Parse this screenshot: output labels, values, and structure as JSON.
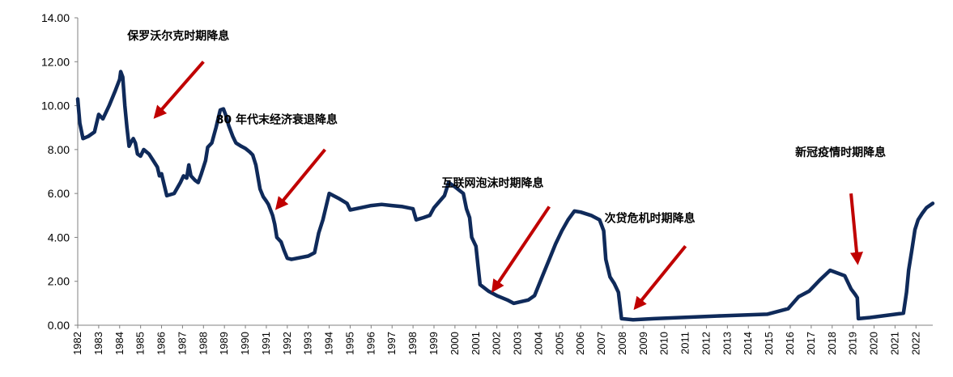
{
  "chart_data": {
    "type": "line",
    "title": "",
    "xlabel": "",
    "ylabel": "",
    "xlim": [
      1982,
      2022.8
    ],
    "ylim": [
      0,
      14
    ],
    "grid": false,
    "colors": {
      "line": "#0f2a5a",
      "arrow": "#c00000"
    },
    "y_ticks": [
      "0.00",
      "2.00",
      "4.00",
      "6.00",
      "8.00",
      "10.00",
      "12.00",
      "14.00"
    ],
    "x_ticks": [
      "1982",
      "1983",
      "1984",
      "1985",
      "1986",
      "1987",
      "1988",
      "1989",
      "1990",
      "1991",
      "1992",
      "1993",
      "1994",
      "1995",
      "1996",
      "1997",
      "1998",
      "1999",
      "2000",
      "2001",
      "2002",
      "2003",
      "2004",
      "2005",
      "2006",
      "2007",
      "2008",
      "2009",
      "2010",
      "2011",
      "2012",
      "2013",
      "2014",
      "2015",
      "2016",
      "2017",
      "2018",
      "2019",
      "2020",
      "2021",
      "2022"
    ],
    "series": [
      {
        "points": [
          [
            1982.0,
            10.3
          ],
          [
            1982.1,
            9.2
          ],
          [
            1982.25,
            8.5
          ],
          [
            1982.5,
            8.6
          ],
          [
            1982.8,
            8.8
          ],
          [
            1983.0,
            9.6
          ],
          [
            1983.2,
            9.4
          ],
          [
            1983.5,
            10.0
          ],
          [
            1983.8,
            10.7
          ],
          [
            1984.0,
            11.2
          ],
          [
            1984.05,
            11.55
          ],
          [
            1984.15,
            11.3
          ],
          [
            1984.25,
            10.0
          ],
          [
            1984.35,
            9.0
          ],
          [
            1984.45,
            8.15
          ],
          [
            1984.55,
            8.35
          ],
          [
            1984.65,
            8.5
          ],
          [
            1984.75,
            8.3
          ],
          [
            1984.85,
            7.8
          ],
          [
            1985.0,
            7.7
          ],
          [
            1985.15,
            8.0
          ],
          [
            1985.4,
            7.8
          ],
          [
            1985.6,
            7.5
          ],
          [
            1985.8,
            7.2
          ],
          [
            1985.9,
            6.8
          ],
          [
            1986.0,
            6.9
          ],
          [
            1986.1,
            6.5
          ],
          [
            1986.25,
            5.9
          ],
          [
            1986.6,
            6.0
          ],
          [
            1986.9,
            6.5
          ],
          [
            1987.05,
            6.8
          ],
          [
            1987.2,
            6.7
          ],
          [
            1987.3,
            7.3
          ],
          [
            1987.4,
            6.8
          ],
          [
            1987.6,
            6.6
          ],
          [
            1987.75,
            6.5
          ],
          [
            1987.9,
            6.9
          ],
          [
            1988.1,
            7.5
          ],
          [
            1988.2,
            8.1
          ],
          [
            1988.4,
            8.3
          ],
          [
            1988.6,
            9.0
          ],
          [
            1988.8,
            9.8
          ],
          [
            1988.95,
            9.85
          ],
          [
            1989.05,
            9.6
          ],
          [
            1989.2,
            9.1
          ],
          [
            1989.4,
            8.6
          ],
          [
            1989.55,
            8.3
          ],
          [
            1989.8,
            8.15
          ],
          [
            1990.0,
            8.05
          ],
          [
            1990.2,
            7.9
          ],
          [
            1990.35,
            7.75
          ],
          [
            1990.5,
            7.3
          ],
          [
            1990.7,
            6.2
          ],
          [
            1990.85,
            5.85
          ],
          [
            1991.0,
            5.65
          ],
          [
            1991.1,
            5.5
          ],
          [
            1991.3,
            5.0
          ],
          [
            1991.4,
            4.6
          ],
          [
            1991.5,
            4.0
          ],
          [
            1991.7,
            3.8
          ],
          [
            1991.85,
            3.4
          ],
          [
            1992.0,
            3.05
          ],
          [
            1992.2,
            3.0
          ],
          [
            1993.0,
            3.15
          ],
          [
            1993.3,
            3.3
          ],
          [
            1993.5,
            4.2
          ],
          [
            1993.7,
            4.8
          ],
          [
            1994.0,
            6.0
          ],
          [
            1994.5,
            5.75
          ],
          [
            1994.85,
            5.55
          ],
          [
            1995.0,
            5.25
          ],
          [
            1995.5,
            5.35
          ],
          [
            1996.0,
            5.45
          ],
          [
            1996.5,
            5.5
          ],
          [
            1997.0,
            5.45
          ],
          [
            1997.5,
            5.4
          ],
          [
            1998.0,
            5.3
          ],
          [
            1998.15,
            4.8
          ],
          [
            1998.5,
            4.9
          ],
          [
            1998.8,
            5.0
          ],
          [
            1999.0,
            5.35
          ],
          [
            1999.5,
            5.9
          ],
          [
            1999.7,
            6.5
          ],
          [
            2000.0,
            6.3
          ],
          [
            2000.4,
            6.0
          ],
          [
            2000.55,
            5.3
          ],
          [
            2000.7,
            4.9
          ],
          [
            2000.8,
            4.0
          ],
          [
            2001.0,
            3.6
          ],
          [
            2001.1,
            2.7
          ],
          [
            2001.2,
            1.85
          ],
          [
            2001.6,
            1.55
          ],
          [
            2002.0,
            1.35
          ],
          [
            2002.5,
            1.15
          ],
          [
            2002.8,
            1.0
          ],
          [
            2003.5,
            1.15
          ],
          [
            2003.8,
            1.35
          ],
          [
            2004.2,
            2.3
          ],
          [
            2004.5,
            3.0
          ],
          [
            2004.8,
            3.7
          ],
          [
            2005.1,
            4.3
          ],
          [
            2005.4,
            4.8
          ],
          [
            2005.7,
            5.2
          ],
          [
            2006.0,
            5.15
          ],
          [
            2006.5,
            5.0
          ],
          [
            2006.9,
            4.8
          ],
          [
            2007.1,
            4.3
          ],
          [
            2007.2,
            3.0
          ],
          [
            2007.4,
            2.2
          ],
          [
            2007.6,
            1.9
          ],
          [
            2007.8,
            1.5
          ],
          [
            2007.95,
            0.3
          ],
          [
            2008.5,
            0.25
          ],
          [
            2009.5,
            0.3
          ],
          [
            2012.5,
            0.42
          ],
          [
            2014.9,
            0.5
          ],
          [
            2015.9,
            0.75
          ],
          [
            2016.4,
            1.3
          ],
          [
            2016.9,
            1.55
          ],
          [
            2017.4,
            2.05
          ],
          [
            2017.9,
            2.5
          ],
          [
            2018.6,
            2.25
          ],
          [
            2018.9,
            1.65
          ],
          [
            2019.1,
            1.4
          ],
          [
            2019.2,
            1.25
          ],
          [
            2019.25,
            0.3
          ],
          [
            2019.8,
            0.35
          ],
          [
            2021.4,
            0.55
          ],
          [
            2021.55,
            1.5
          ],
          [
            2021.65,
            2.5
          ],
          [
            2021.8,
            3.4
          ],
          [
            2021.95,
            4.35
          ],
          [
            2022.1,
            4.8
          ],
          [
            2022.3,
            5.1
          ],
          [
            2022.5,
            5.35
          ],
          [
            2022.8,
            5.55
          ]
        ]
      }
    ],
    "annotations": [
      {
        "text": "保罗沃尔克时期降息",
        "pos": [
          1986.8,
          13.0
        ],
        "arrow_from": [
          1988.0,
          12.0
        ],
        "arrow_to": [
          1985.8,
          9.6
        ]
      },
      {
        "text": "80 年代末经济衰退降息",
        "pos": [
          1991.5,
          9.2
        ],
        "arrow_from": [
          1993.8,
          8.0
        ],
        "arrow_to": [
          1991.6,
          5.45
        ]
      },
      {
        "text": "互联网泡沫时期降息",
        "pos": [
          2001.8,
          6.3
        ],
        "arrow_from": [
          2004.5,
          5.4
        ],
        "arrow_to": [
          2001.9,
          1.7
        ]
      },
      {
        "text": "次贷危机时期降息",
        "pos": [
          2009.3,
          4.7
        ],
        "arrow_from": [
          2011.0,
          3.6
        ],
        "arrow_to": [
          2008.7,
          0.9
        ]
      },
      {
        "text": "新冠疫情时期降息",
        "pos": [
          2018.4,
          7.7
        ],
        "arrow_from": [
          2018.9,
          6.0
        ],
        "arrow_to": [
          2019.2,
          3.0
        ]
      }
    ]
  }
}
